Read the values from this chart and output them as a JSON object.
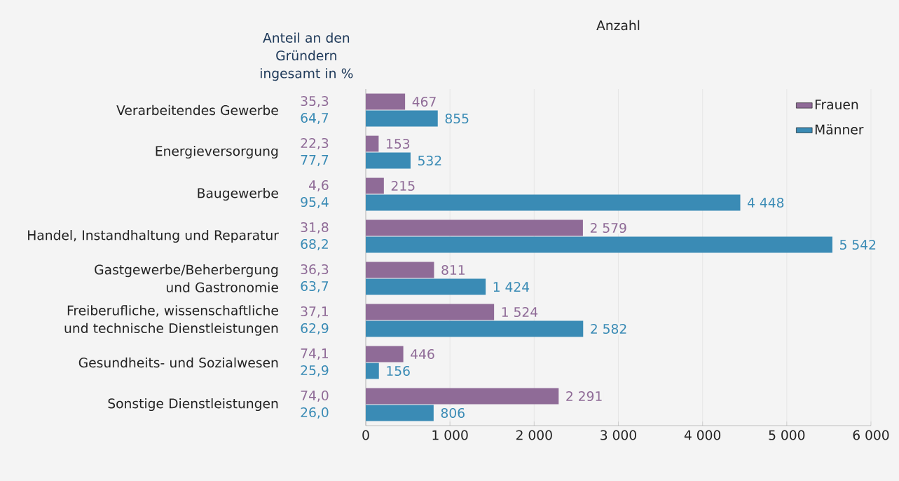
{
  "chart_data": {
    "type": "bar",
    "orientation": "horizontal",
    "xlabel": "Anzahl",
    "ylabel": "Anteil an den Gründern ingesamt in %",
    "categories": [
      "Verarbeitendes Gewerbe",
      "Energieversorgung",
      "Baugewerbe",
      "Handel, Instandhaltung und Reparatur",
      "Gastgewerbe/Beherbergung und Gastronomie",
      "Freiberufliche, wissenschaftliche und technische Dienstleistungen",
      "Gesundheits- und Sozialwesen",
      "Sonstige Dienstleistungen"
    ],
    "series": [
      {
        "name": "Frauen",
        "color": "#8f6b97",
        "values": [
          467,
          153,
          215,
          2579,
          811,
          1524,
          446,
          2291
        ],
        "value_labels": [
          "467",
          "153",
          "215",
          "2 579",
          "811",
          "1 524",
          "446",
          "2 291"
        ]
      },
      {
        "name": "Männer",
        "color": "#3a8bb5",
        "values": [
          855,
          532,
          4448,
          5542,
          1424,
          2582,
          156,
          806
        ],
        "value_labels": [
          "855",
          "532",
          "4 448",
          "5 542",
          "1 424",
          "2 582",
          "156",
          "806"
        ]
      }
    ],
    "xlim": [
      0,
      6000
    ],
    "xticks": [
      0,
      {
        "value": 1000,
        "label": "1 000"
      },
      {
        "value": 2000,
        "label": "2 000"
      },
      {
        "value": 3000,
        "label": "3 000"
      },
      {
        "value": 4000,
        "label": "4 000"
      },
      {
        "value": 5000,
        "label": "5 000"
      },
      {
        "value": 6000,
        "label": "6 000"
      }
    ],
    "grid": "x",
    "legend": "top right",
    "annotations": [
      "35,3",
      "64,7",
      "22,3",
      "77,7",
      "4,6",
      "95,4",
      "31,8",
      "68,2",
      "36,3",
      "63,7",
      "37,1",
      "62,9",
      "74,1",
      "25,9",
      "74,0",
      "26,0"
    ]
  }
}
